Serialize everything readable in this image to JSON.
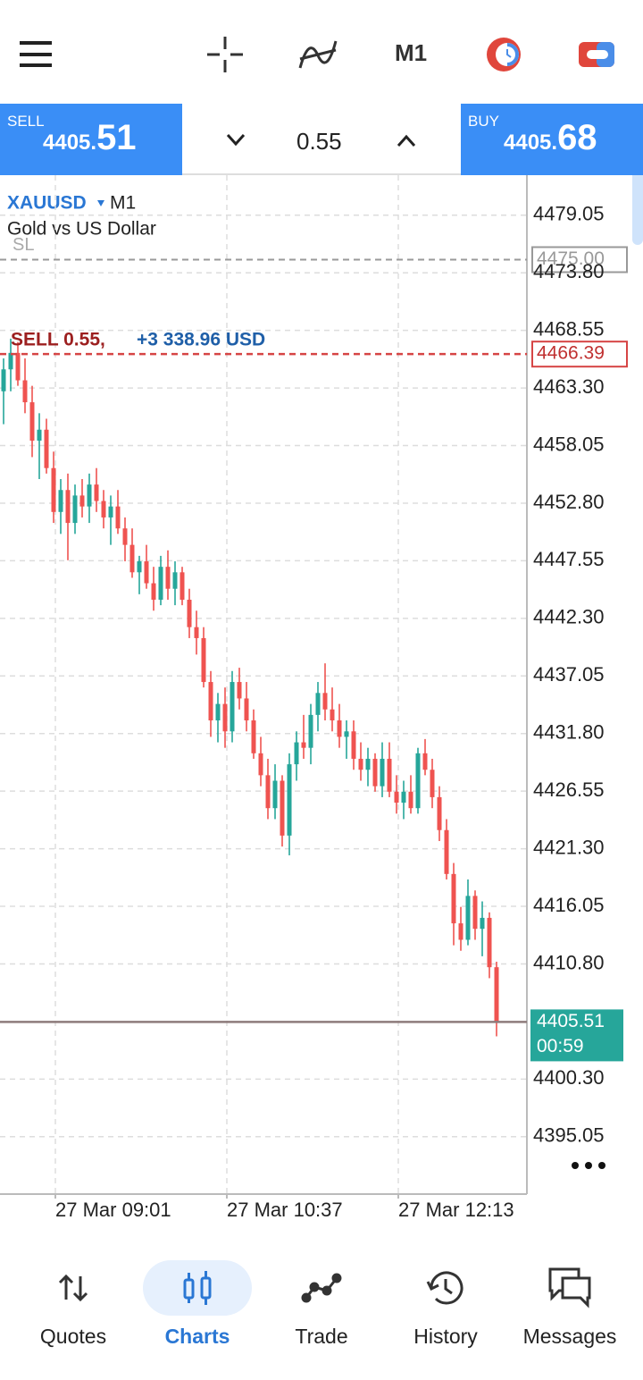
{
  "toolbar": {
    "timeframe": "M1"
  },
  "trade_panel": {
    "sell": {
      "label": "SELL",
      "price_main": "4405.",
      "price_big": "51"
    },
    "volume": "0.55",
    "buy": {
      "label": "BUY",
      "price_main": "4405.",
      "price_big": "68"
    }
  },
  "chart_data": {
    "type": "candlestick",
    "symbol": "XAUUSD",
    "timeframe": "M1",
    "description": "Gold vs US Dollar",
    "up_color": "#26a69a",
    "down_color": "#ef5350",
    "open": [
      4463,
      4465,
      4466.5,
      4464,
      4462,
      4458.5,
      4459.5,
      4456,
      4452,
      4454,
      4451,
      4453.5,
      4452.5,
      4454.5,
      4453,
      4451.5,
      4452.5,
      4450.5,
      4449,
      4446.5,
      4447.5,
      4445.5,
      4444,
      4447,
      4445,
      4446.5,
      4444,
      4441.5,
      4440.5,
      4436.5,
      4433,
      4434.5,
      4432,
      4436.5,
      4435,
      4433,
      4430,
      4428,
      4425,
      4427.5,
      4422.5,
      4429,
      4431,
      4430.5,
      4433.5,
      4435.5,
      4434,
      4433,
      4431.5,
      4432,
      4429.5,
      4428.5,
      4429.5,
      4427,
      4429.5,
      4426.5,
      4425.5,
      4426.5,
      4425,
      4430,
      4428.5,
      4426,
      4423,
      4419,
      4414.5,
      4413,
      4417,
      4414,
      4415,
      4410.5
    ],
    "high": [
      4466,
      4467.8,
      4467.5,
      4466,
      4463.5,
      4461,
      4460.5,
      4457.5,
      4455,
      4455.5,
      4454.5,
      4455,
      4455.5,
      4456,
      4454,
      4453.5,
      4454,
      4451.5,
      4450.5,
      4448,
      4449,
      4447,
      4448,
      4448.5,
      4447.5,
      4447,
      4445,
      4443,
      4441.5,
      4437.5,
      4435.5,
      4436,
      4437.5,
      4437.8,
      4436.5,
      4434,
      4431.5,
      4429.5,
      4429,
      4428,
      4430,
      4432,
      4433.5,
      4434.5,
      4436.5,
      4438.2,
      4436,
      4434.5,
      4433,
      4433,
      4431,
      4430.5,
      4430,
      4431,
      4431,
      4428,
      4427.5,
      4428,
      4430.5,
      4431.3,
      4429.5,
      4427,
      4424,
      4420,
      4416,
      4418.5,
      4417.5,
      4416.5,
      4415.5,
      4411
    ],
    "low": [
      4460,
      4463,
      4463.5,
      4461,
      4457,
      4455,
      4455.5,
      4451,
      4450,
      4447.6,
      4450,
      4451.5,
      4451,
      4452,
      4450.5,
      4449,
      4450,
      4447.5,
      4446,
      4444.5,
      4445,
      4443,
      4443.5,
      4444,
      4443.5,
      4443.5,
      4440.5,
      4439,
      4436,
      4431.5,
      4431,
      4430.5,
      4431,
      4434,
      4432,
      4429.5,
      4427,
      4424,
      4424,
      4421.5,
      4420.7,
      4427.5,
      4429.5,
      4429,
      4432,
      4433,
      4432,
      4430.5,
      4429.5,
      4428.5,
      4427.5,
      4427,
      4426.5,
      4426,
      4426,
      4424.5,
      4424,
      4424.5,
      4424.5,
      4428,
      4425,
      4422,
      4418.5,
      4412.5,
      4412,
      4412.5,
      4413,
      4411.5,
      4409.5,
      4404.2
    ],
    "close": [
      4465,
      4466.5,
      4464,
      4462,
      4458.5,
      4459.5,
      4456,
      4452,
      4454,
      4451,
      4453.5,
      4452.5,
      4454.5,
      4453,
      4451.5,
      4452.5,
      4450.5,
      4449,
      4446.5,
      4447.5,
      4445.5,
      4444,
      4447,
      4445,
      4446.5,
      4444,
      4441.5,
      4440.5,
      4436.5,
      4433,
      4434.5,
      4432,
      4436.5,
      4435,
      4433,
      4430,
      4428,
      4425,
      4427.5,
      4422.5,
      4429,
      4431,
      4430.5,
      4433.5,
      4435.5,
      4434,
      4433,
      4431.5,
      4432,
      4429.5,
      4428.5,
      4429.5,
      4427,
      4429.5,
      4426.5,
      4425.5,
      4426.5,
      4425,
      4430,
      4428.5,
      4426,
      4423,
      4419,
      4414.5,
      4413,
      4417,
      4414,
      4415,
      4410.5,
      4405.51
    ],
    "ylim": [
      4389.9,
      4482.7
    ],
    "yticks": [
      4479.05,
      {
        "value": 4473.8,
        "label": "4473.80"
      },
      4468.55,
      {
        "value": 4463.3,
        "label": "4463.30"
      },
      4458.05,
      {
        "value": 4452.8,
        "label": "4452.80"
      },
      4447.55,
      {
        "value": 4442.3,
        "label": "4442.30"
      },
      4437.05,
      {
        "value": 4431.8,
        "label": "4431.80"
      },
      4426.55,
      {
        "value": 4421.3,
        "label": "4421.30"
      },
      4416.05,
      {
        "value": 4410.8,
        "label": "4410.80"
      },
      {
        "value": 4400.3,
        "label": "4400.30"
      },
      4395.05
    ],
    "xlim": [
      0,
      70
    ],
    "xticks": [
      {
        "value": 7.75,
        "label": "27 Mar 09:01"
      },
      {
        "value": 31.75,
        "label": "27 Mar 10:37"
      },
      {
        "value": 55.75,
        "label": "27 Mar 12:13"
      }
    ],
    "grid": true,
    "sl": {
      "label": "SL",
      "value": 4475,
      "value_label": "4475.00"
    },
    "position": {
      "label": "SELL 0.55,",
      "profit": "+3 338.96 USD",
      "value": 4466.39
    },
    "bid": {
      "value": 4405.51,
      "countdown": "00:59"
    }
  },
  "nav": {
    "items": [
      {
        "label": "Quotes",
        "active": false
      },
      {
        "label": "Charts",
        "active": true
      },
      {
        "label": "Trade",
        "active": false
      },
      {
        "label": "History",
        "active": false
      },
      {
        "label": "Messages",
        "active": false
      }
    ]
  }
}
